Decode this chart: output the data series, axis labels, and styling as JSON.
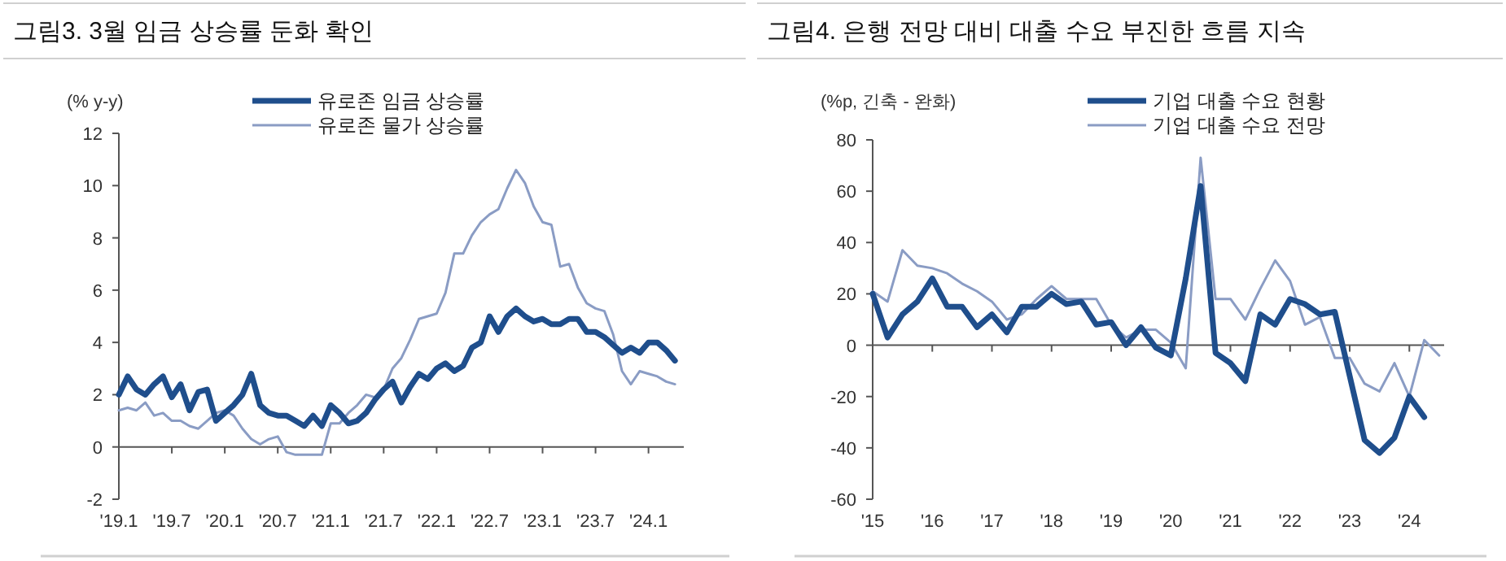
{
  "chart_data": [
    {
      "type": "line",
      "title": "그림3. 3월 임금 상승률 둔화 확인",
      "ylabel": "(% y-y)",
      "legend": "top",
      "x": [
        "2019-01",
        "2019-02",
        "2019-03",
        "2019-04",
        "2019-05",
        "2019-06",
        "2019-07",
        "2019-08",
        "2019-09",
        "2019-10",
        "2019-11",
        "2019-12",
        "2020-01",
        "2020-02",
        "2020-03",
        "2020-04",
        "2020-05",
        "2020-06",
        "2020-07",
        "2020-08",
        "2020-09",
        "2020-10",
        "2020-11",
        "2020-12",
        "2021-01",
        "2021-02",
        "2021-03",
        "2021-04",
        "2021-05",
        "2021-06",
        "2021-07",
        "2021-08",
        "2021-09",
        "2021-10",
        "2021-11",
        "2021-12",
        "2022-01",
        "2022-02",
        "2022-03",
        "2022-04",
        "2022-05",
        "2022-06",
        "2022-07",
        "2022-08",
        "2022-09",
        "2022-10",
        "2022-11",
        "2022-12",
        "2023-01",
        "2023-02",
        "2023-03",
        "2023-04",
        "2023-05",
        "2023-06",
        "2023-07",
        "2023-08",
        "2023-09",
        "2023-10",
        "2023-11",
        "2023-12",
        "2024-01",
        "2024-02",
        "2024-03",
        "2024-04"
      ],
      "xlim": [
        "2019-01",
        "2024-05"
      ],
      "xticks": [
        {
          "value": "2019-01",
          "label": "'19.1"
        },
        {
          "value": "2019-07",
          "label": "'19.7"
        },
        {
          "value": "2020-01",
          "label": "'20.1"
        },
        {
          "value": "2020-07",
          "label": "'20.7"
        },
        {
          "value": "2021-01",
          "label": "'21.1"
        },
        {
          "value": "2021-07",
          "label": "'21.7"
        },
        {
          "value": "2022-01",
          "label": "'22.1"
        },
        {
          "value": "2022-07",
          "label": "'22.7"
        },
        {
          "value": "2023-01",
          "label": "'23.1"
        },
        {
          "value": "2023-07",
          "label": "'23.7"
        },
        {
          "value": "2024-01",
          "label": "'24.1"
        }
      ],
      "ylim": [
        -2,
        12
      ],
      "yticks": [
        -2,
        0,
        2,
        4,
        6,
        8,
        10,
        12
      ],
      "series": [
        {
          "name": "유로존 임금 상승률",
          "color": "#1f4e8c",
          "values": [
            2.0,
            2.7,
            2.2,
            2.0,
            2.4,
            2.7,
            1.9,
            2.4,
            1.4,
            2.1,
            2.2,
            1.0,
            1.3,
            1.6,
            2.0,
            2.8,
            1.6,
            1.3,
            1.2,
            1.2,
            1.0,
            0.8,
            1.2,
            0.8,
            1.6,
            1.3,
            0.9,
            1.0,
            1.3,
            1.8,
            2.2,
            2.5,
            1.7,
            2.3,
            2.8,
            2.6,
            3.0,
            3.2,
            2.9,
            3.1,
            3.8,
            4.0,
            5.0,
            4.4,
            5.0,
            5.3,
            5.0,
            4.8,
            4.9,
            4.7,
            4.7,
            4.9,
            4.9,
            4.4,
            4.4,
            4.2,
            3.9,
            3.6,
            3.8,
            3.6,
            4.0,
            4.0,
            3.7,
            3.3
          ]
        },
        {
          "name": "유로존 물가 상승률",
          "color": "#8a9cc4",
          "values": [
            1.4,
            1.5,
            1.4,
            1.7,
            1.2,
            1.3,
            1.0,
            1.0,
            0.8,
            0.7,
            1.0,
            1.3,
            1.4,
            1.2,
            0.7,
            0.3,
            0.1,
            0.3,
            0.4,
            -0.2,
            -0.3,
            -0.3,
            -0.3,
            -0.3,
            0.9,
            0.9,
            1.3,
            1.6,
            2.0,
            1.9,
            2.2,
            3.0,
            3.4,
            4.1,
            4.9,
            5.0,
            5.1,
            5.9,
            7.4,
            7.4,
            8.1,
            8.6,
            8.9,
            9.1,
            9.9,
            10.6,
            10.1,
            9.2,
            8.6,
            8.5,
            6.9,
            7.0,
            6.1,
            5.5,
            5.3,
            5.2,
            4.3,
            2.9,
            2.4,
            2.9,
            2.8,
            2.7,
            2.5,
            2.4
          ]
        }
      ]
    },
    {
      "type": "line",
      "title": "그림4. 은행 전망 대비 대출 수요 부진한 흐름 지속",
      "ylabel": "(%p, 긴축 - 완화)",
      "legend": "top",
      "x": [
        "2015-01",
        "2015-04",
        "2015-07",
        "2015-10",
        "2016-01",
        "2016-04",
        "2016-07",
        "2016-10",
        "2017-01",
        "2017-04",
        "2017-07",
        "2017-10",
        "2018-01",
        "2018-04",
        "2018-07",
        "2018-10",
        "2019-01",
        "2019-04",
        "2019-07",
        "2019-10",
        "2020-01",
        "2020-04",
        "2020-07",
        "2020-10",
        "2021-01",
        "2021-04",
        "2021-07",
        "2021-10",
        "2022-01",
        "2022-04",
        "2022-07",
        "2022-10",
        "2023-01",
        "2023-04",
        "2023-07",
        "2023-10",
        "2024-01",
        "2024-04",
        "2024-07"
      ],
      "xlim": [
        "2015-01",
        "2024-08"
      ],
      "xticks": [
        {
          "value": "2015-01",
          "label": "'15"
        },
        {
          "value": "2016-01",
          "label": "'16"
        },
        {
          "value": "2017-01",
          "label": "'17"
        },
        {
          "value": "2018-01",
          "label": "'18"
        },
        {
          "value": "2019-01",
          "label": "'19"
        },
        {
          "value": "2020-01",
          "label": "'20"
        },
        {
          "value": "2021-01",
          "label": "'21"
        },
        {
          "value": "2022-01",
          "label": "'22"
        },
        {
          "value": "2023-01",
          "label": "'23"
        },
        {
          "value": "2024-01",
          "label": "'24"
        }
      ],
      "ylim": [
        -60,
        80
      ],
      "yticks": [
        -60,
        -40,
        -20,
        0,
        20,
        40,
        60,
        80
      ],
      "series": [
        {
          "name": "기업 대출 수요 현황",
          "color": "#1f4e8c",
          "values": [
            20,
            3,
            12,
            17,
            26,
            15,
            15,
            7,
            12,
            5,
            15,
            15,
            20,
            16,
            17,
            8,
            9,
            0,
            7,
            -1,
            -4,
            26,
            62,
            -3,
            -7,
            -14,
            12,
            8,
            18,
            16,
            12,
            13,
            -12,
            -37,
            -42,
            -36,
            -20,
            -28,
            null
          ]
        },
        {
          "name": "기업 대출 수요 전망",
          "color": "#8a9cc4",
          "values": [
            21,
            17,
            37,
            31,
            30,
            28,
            24,
            21,
            17,
            10,
            12,
            18,
            23,
            18,
            18,
            18,
            8,
            3,
            6,
            6,
            1,
            -9,
            73,
            18,
            18,
            10,
            22,
            33,
            25,
            8,
            11,
            -5,
            -5,
            -15,
            -18,
            -7,
            -20,
            2,
            -4
          ]
        }
      ]
    }
  ]
}
